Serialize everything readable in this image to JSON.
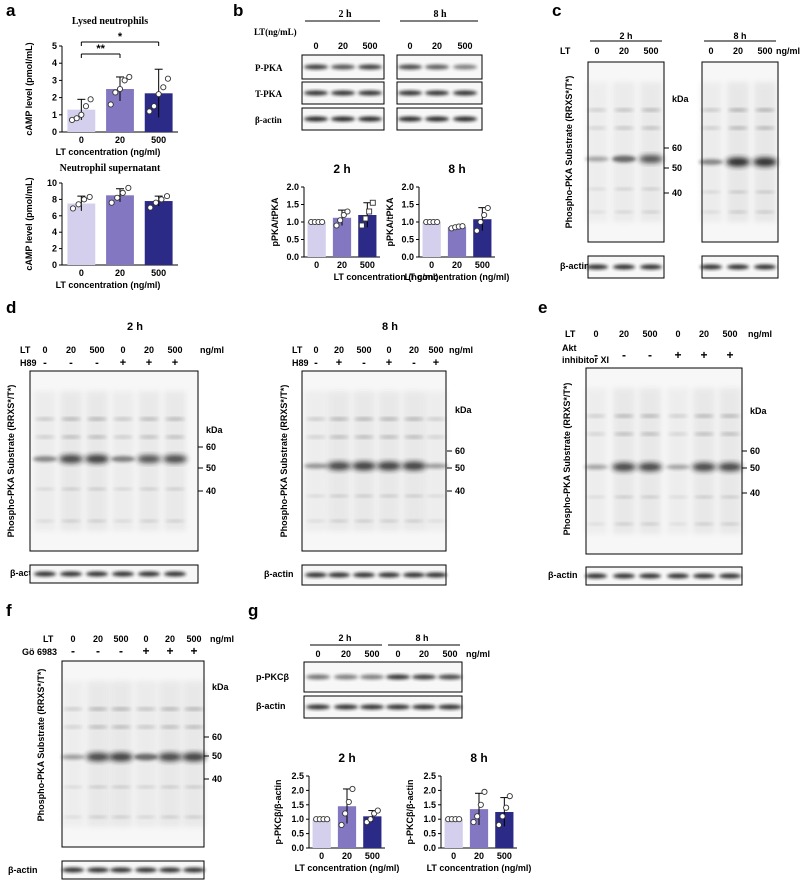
{
  "panels": {
    "a": {
      "letter": "a",
      "chart_top": {
        "type": "bar",
        "title": "Lysed neutrophils",
        "ylabel": "cAMP level (pmol/mL)",
        "xlabel": "LT concentration (ng/ml)",
        "categories": [
          "0",
          "20",
          "500"
        ],
        "values": [
          1.3,
          2.5,
          2.25
        ],
        "errors": [
          0.6,
          0.7,
          1.4
        ],
        "points": [
          [
            0.7,
            0.8,
            1.0,
            1.5,
            1.9
          ],
          [
            1.6,
            2.3,
            2.5,
            3.0,
            3.2
          ],
          [
            1.2,
            1.5,
            2.2,
            2.6,
            3.1
          ]
        ],
        "ylim": [
          0,
          5
        ],
        "yticks": [
          "0",
          "1",
          "2",
          "3",
          "4",
          "5"
        ],
        "significance": [
          {
            "label": "**",
            "from": 0,
            "to": 1
          },
          {
            "label": "*",
            "from": 0,
            "to": 2
          }
        ]
      },
      "chart_bottom": {
        "type": "bar",
        "title": "Neutrophil supernatant",
        "ylabel": "cAMP level (pmol/mL)",
        "xlabel": "LT concentration (ng/ml)",
        "categories": [
          "0",
          "20",
          "500"
        ],
        "values": [
          7.5,
          8.5,
          7.8
        ],
        "errors": [
          0.9,
          0.8,
          0.6
        ],
        "points": [
          [
            6.9,
            7.4,
            8.0,
            8.3
          ],
          [
            7.6,
            8.2,
            8.8,
            9.4
          ],
          [
            7.0,
            7.6,
            8.0,
            8.4
          ]
        ],
        "ylim": [
          0,
          10
        ],
        "yticks": [
          "0",
          "2",
          "4",
          "6",
          "8",
          "10"
        ]
      }
    },
    "b": {
      "letter": "b",
      "time_2h": "2 h",
      "time_8h": "8 h",
      "lt_header": "LT(ng/mL)",
      "lanes": [
        "0",
        "20",
        "500"
      ],
      "row_labels": [
        "P-PKA",
        "T-PKA",
        "β-actin"
      ],
      "chart_2h": {
        "type": "bar",
        "title": "2 h",
        "ylabel": "pPKA/tPKA",
        "xlabel": "LT concentration (ng/ml)",
        "categories": [
          "0",
          "20",
          "500"
        ],
        "values": [
          1.0,
          1.12,
          1.2
        ],
        "errors": [
          0.02,
          0.22,
          0.35
        ],
        "points": [
          [
            1.0,
            1.0,
            1.0,
            1.0
          ],
          [
            0.9,
            1.05,
            1.2,
            1.3
          ],
          [
            0.9,
            1.1,
            1.3,
            1.55
          ]
        ],
        "ylim": [
          0,
          2
        ],
        "yticks": [
          "0.0",
          "0.5",
          "1.0",
          "1.5",
          "2.0"
        ]
      },
      "chart_8h": {
        "type": "bar",
        "title": "8 h",
        "ylabel": "pPKA/tPKA",
        "xlabel": "LT concentration (ng/ml)",
        "categories": [
          "0",
          "20",
          "500"
        ],
        "values": [
          1.0,
          0.85,
          1.08
        ],
        "errors": [
          0.02,
          0.03,
          0.33
        ],
        "points": [
          [
            1.0,
            1.0,
            1.0,
            1.0
          ],
          [
            0.82,
            0.85,
            0.87,
            0.88
          ],
          [
            0.75,
            1.0,
            1.2,
            1.4
          ]
        ],
        "ylim": [
          0,
          2
        ],
        "yticks": [
          "0.0",
          "0.5",
          "1.0",
          "1.5",
          "2.0"
        ]
      }
    },
    "c": {
      "letter": "c",
      "time_2h": "2 h",
      "time_8h": "8 h",
      "lt_label": "LT",
      "unit": "ng/ml",
      "lanes": [
        "0",
        "20",
        "500"
      ],
      "kda": "kDa",
      "markers": [
        "60",
        "50",
        "40"
      ],
      "ylabel": "Phospho-PKA Substrate (RRXS*/T*)",
      "actin": "β-actin"
    },
    "d": {
      "letter": "d",
      "title_2h": "2 h",
      "title_8h": "8 h",
      "lt_label": "LT",
      "unit": "ng/ml",
      "lanes": [
        "0",
        "20",
        "500",
        "0",
        "20",
        "500"
      ],
      "h89_label": "H89",
      "h89_signs": [
        "-",
        "-",
        "-",
        "+",
        "+",
        "+"
      ],
      "h89_signs_8h": [
        "-",
        "+",
        "-",
        "+",
        "-",
        "+"
      ],
      "kda": "kDa",
      "markers": [
        "60",
        "50",
        "40"
      ],
      "ylabel": "Phospho-PKA Substrate (RRXS*/T*)",
      "actin": "β-actin"
    },
    "e": {
      "letter": "e",
      "lt_label": "LT",
      "unit": "ng/ml",
      "lanes": [
        "0",
        "20",
        "500",
        "0",
        "20",
        "500"
      ],
      "inhibitor_line1": "Akt",
      "inhibitor_line2": "inhibitor XI",
      "signs": [
        "-",
        "-",
        "-",
        "+",
        "+",
        "+"
      ],
      "kda": "kDa",
      "markers": [
        "60",
        "50",
        "40"
      ],
      "ylabel": "Phospho-PKA Substrate (RRXS*/T*)",
      "actin": "β-actin"
    },
    "f": {
      "letter": "f",
      "lt_label": "LT",
      "unit": "ng/ml",
      "lanes": [
        "0",
        "20",
        "500",
        "0",
        "20",
        "500"
      ],
      "inhibitor": "Gö 6983",
      "signs": [
        "-",
        "-",
        "-",
        "+",
        "+",
        "+"
      ],
      "kda": "kDa",
      "markers": [
        "60",
        "50",
        "40"
      ],
      "ylabel": "Phospho-PKA Substrate (RRXS*/T*)",
      "actin": "β-actin"
    },
    "g": {
      "letter": "g",
      "time_2h": "2 h",
      "time_8h": "8 h",
      "lanes": [
        "0",
        "20",
        "500",
        "0",
        "20",
        "500"
      ],
      "unit": "ng/ml",
      "row_labels": [
        "p-PKCβ",
        "β-actin"
      ],
      "chart_2h": {
        "type": "bar",
        "title": "2 h",
        "ylabel": "p-PKCβ/β-actin",
        "xlabel": "LT concentration (ng/ml)",
        "categories": [
          "0",
          "20",
          "500"
        ],
        "values": [
          1.0,
          1.45,
          1.1
        ],
        "errors": [
          0.02,
          0.6,
          0.2
        ],
        "points": [
          [
            1.0,
            1.0,
            1.0,
            1.0
          ],
          [
            0.8,
            1.2,
            1.6,
            2.05
          ],
          [
            0.9,
            1.0,
            1.2,
            1.3
          ]
        ],
        "ylim": [
          0,
          2.5
        ],
        "yticks": [
          "0.0",
          "0.5",
          "1.0",
          "1.5",
          "2.0",
          "2.5"
        ]
      },
      "chart_8h": {
        "type": "bar",
        "title": "8 h",
        "ylabel": "p-PKCβ/β-actin",
        "xlabel": "LT concentration (ng/ml)",
        "categories": [
          "0",
          "20",
          "500"
        ],
        "values": [
          1.0,
          1.35,
          1.25
        ],
        "errors": [
          0.02,
          0.55,
          0.5
        ],
        "points": [
          [
            1.0,
            1.0,
            1.0,
            1.0
          ],
          [
            0.9,
            1.1,
            1.5,
            1.95
          ],
          [
            0.8,
            1.1,
            1.4,
            1.8
          ]
        ],
        "ylim": [
          0,
          2.5
        ],
        "yticks": [
          "0.0",
          "0.5",
          "1.0",
          "1.5",
          "2.0",
          "2.5"
        ]
      }
    }
  },
  "colors": {
    "bar_0": "#d4cfec",
    "bar_20": "#8477c2",
    "bar_500": "#2c2a87",
    "blot_bg": "#f7f7f7",
    "band": "#1a1a1a"
  }
}
